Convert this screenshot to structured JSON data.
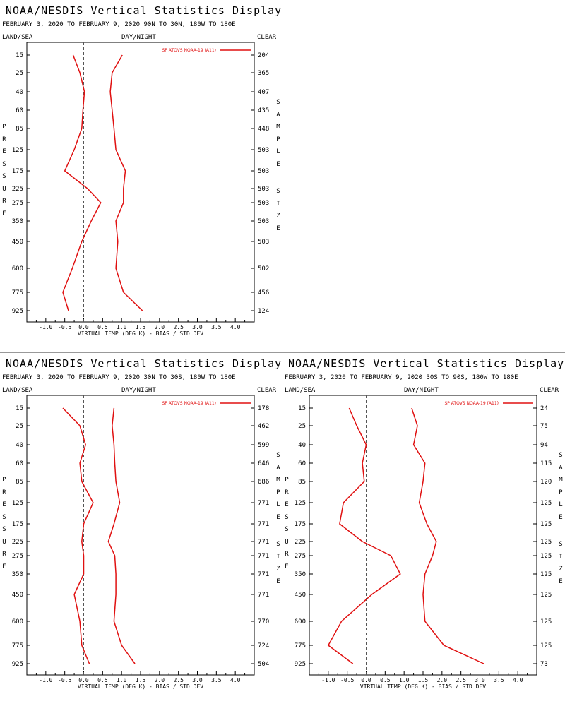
{
  "colors": {
    "line": "#e01010",
    "axis": "#000000",
    "zero": "#555555",
    "divider": "#999999"
  },
  "panels": [
    {
      "title": "NOAA/NESDIS Vertical Statistics Display",
      "subtitle": "FEBRUARY 3, 2020 TO FEBRUARY 9, 2020 90N TO 30N, 180W TO 180E",
      "left_label": "LAND/SEA",
      "mid_label": "DAY/NIGHT",
      "right_label": "CLEAR",
      "side_left": "PRESSURE",
      "side_right_1": "SAMPLE",
      "side_right_2": "SIZE",
      "chart_data": {
        "type": "line",
        "xlabel": "VIRTUAL TEMP (DEG K) - BIAS / STD DEV",
        "ylabel": "PRESSURE",
        "xlim": [
          -1.5,
          4.5
        ],
        "xticks": [
          "-1.0",
          "-0.5",
          "0.0",
          "0.5",
          "1.0",
          "1.5",
          "2.0",
          "2.5",
          "3.0",
          "3.5",
          "4.0"
        ],
        "legend": "SP ATOVS NOAA-19 (A11)",
        "legend_position": "top-right",
        "levels": [
          "15",
          "25",
          "40",
          "60",
          "85",
          "125",
          "175",
          "225",
          "275",
          "350",
          "450",
          "600",
          "775",
          "925"
        ],
        "sample_size": [
          "204",
          "365",
          "407",
          "435",
          "448",
          "503",
          "503",
          "503",
          "503",
          "503",
          "503",
          "502",
          "456",
          "124"
        ],
        "series": [
          {
            "values": [
              -0.28,
              -0.1,
              0.02,
              -0.02,
              -0.05,
              -0.25,
              -0.5,
              0.1,
              0.45,
              0.2,
              -0.05,
              -0.3,
              -0.55,
              -0.4
            ]
          },
          {
            "values": [
              1.02,
              0.75,
              0.7,
              0.75,
              0.8,
              0.85,
              1.1,
              1.05,
              1.05,
              0.85,
              0.9,
              0.85,
              1.05,
              1.55
            ]
          }
        ]
      }
    },
    {
      "title": "NOAA/NESDIS Vertical Statistics Display",
      "subtitle": "FEBRUARY 3, 2020 TO FEBRUARY 9, 2020 30N TO 30S, 180W TO 180E",
      "left_label": "LAND/SEA",
      "mid_label": "DAY/NIGHT",
      "right_label": "CLEAR",
      "side_left": "PRESSURE",
      "side_right_1": "SAMPLE",
      "side_right_2": "SIZE",
      "chart_data": {
        "type": "line",
        "xlabel": "VIRTUAL TEMP (DEG K) - BIAS / STD DEV",
        "ylabel": "PRESSURE",
        "xlim": [
          -1.5,
          4.5
        ],
        "xticks": [
          "-1.0",
          "-0.5",
          "0.0",
          "0.5",
          "1.0",
          "1.5",
          "2.0",
          "2.5",
          "3.0",
          "3.5",
          "4.0"
        ],
        "legend": "SP ATOVS NOAA-19 (A11)",
        "legend_position": "top-right",
        "levels": [
          "15",
          "25",
          "40",
          "60",
          "85",
          "125",
          "175",
          "225",
          "275",
          "350",
          "450",
          "600",
          "775",
          "925"
        ],
        "sample_size": [
          "178",
          "462",
          "599",
          "646",
          "686",
          "771",
          "771",
          "771",
          "771",
          "771",
          "771",
          "770",
          "724",
          "504"
        ],
        "series": [
          {
            "values": [
              -0.55,
              -0.1,
              0.05,
              -0.1,
              -0.05,
              0.25,
              0.0,
              -0.05,
              0.0,
              0.0,
              -0.25,
              -0.1,
              -0.05,
              0.15
            ]
          },
          {
            "values": [
              0.8,
              0.75,
              0.8,
              0.82,
              0.85,
              0.95,
              0.8,
              0.65,
              0.82,
              0.85,
              0.85,
              0.8,
              1.0,
              1.35
            ]
          }
        ]
      }
    },
    {
      "title": "NOAA/NESDIS Vertical Statistics Display",
      "subtitle": "FEBRUARY 3, 2020 TO FEBRUARY 9, 2020 30S TO 90S, 180W TO 180E",
      "left_label": "LAND/SEA",
      "mid_label": "DAY/NIGHT",
      "right_label": "CLEAR",
      "side_left": "PRESSURE",
      "side_right_1": "SAMPLE",
      "side_right_2": "SIZE",
      "chart_data": {
        "type": "line",
        "xlabel": "VIRTUAL TEMP (DEG K) - BIAS / STD DEV",
        "ylabel": "PRESSURE",
        "xlim": [
          -1.5,
          4.5
        ],
        "xticks": [
          "-1.0",
          "-0.5",
          "0.0",
          "0.5",
          "1.0",
          "1.5",
          "2.0",
          "2.5",
          "3.0",
          "3.5",
          "4.0"
        ],
        "legend": "SP ATOVS NOAA-19 (A11)",
        "legend_position": "top-right",
        "levels": [
          "15",
          "25",
          "40",
          "60",
          "85",
          "125",
          "175",
          "225",
          "275",
          "350",
          "450",
          "600",
          "775",
          "925"
        ],
        "sample_size": [
          "24",
          "75",
          "94",
          "115",
          "120",
          "125",
          "125",
          "125",
          "125",
          "125",
          "125",
          "125",
          "125",
          "73"
        ],
        "series": [
          {
            "values": [
              -0.45,
              -0.25,
              0.0,
              -0.1,
              -0.05,
              -0.6,
              -0.7,
              -0.1,
              0.65,
              0.9,
              0.15,
              -0.65,
              -1.0,
              -0.35
            ]
          },
          {
            "values": [
              1.2,
              1.35,
              1.25,
              1.55,
              1.5,
              1.4,
              1.6,
              1.85,
              1.75,
              1.55,
              1.5,
              1.55,
              2.05,
              3.1
            ]
          }
        ]
      }
    }
  ]
}
